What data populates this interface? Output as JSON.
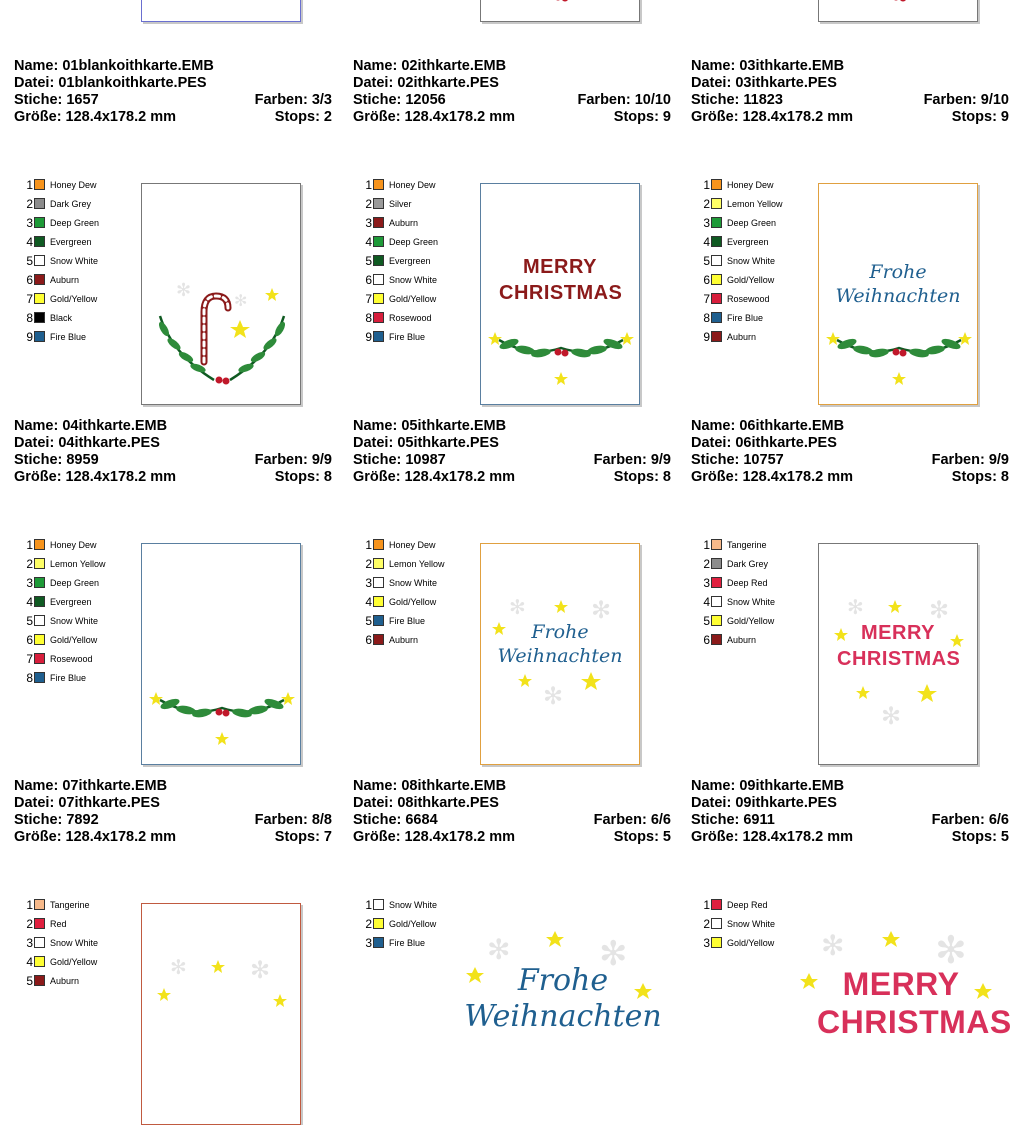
{
  "designs": [
    {
      "name": "Name: 01blankoithkarte.EMB",
      "file": "Datei: 01blankoithkarte.PES",
      "stitches": "Stiche: 1657",
      "colors": "Farben: 3/3",
      "size": "Größe: 128.4x178.2 mm",
      "stops": "Stops: 2",
      "palette": []
    },
    {
      "name": "Name: 02ithkarte.EMB",
      "file": "Datei: 02ithkarte.PES",
      "stitches": "Stiche: 12056",
      "colors": "Farben: 10/10",
      "size": "Größe: 128.4x178.2 mm",
      "stops": "Stops: 9",
      "palette": []
    },
    {
      "name": "Name: 03ithkarte.EMB",
      "file": "Datei: 03ithkarte.PES",
      "stitches": "Stiche: 11823",
      "colors": "Farben: 9/10",
      "size": "Größe: 128.4x178.2 mm",
      "stops": "Stops: 9",
      "palette": []
    },
    {
      "name": "Name: 04ithkarte.EMB",
      "file": "Datei: 04ithkarte.PES",
      "stitches": "Stiche: 8959",
      "colors": "Farben: 9/9",
      "size": "Größe: 128.4x178.2 mm",
      "stops": "Stops: 8",
      "palette": [
        {
          "num": "1",
          "name": "Honey Dew",
          "color": "#f7941d"
        },
        {
          "num": "2",
          "name": "Dark Grey",
          "color": "#8c8c8c"
        },
        {
          "num": "3",
          "name": "Deep Green",
          "color": "#1e9a38"
        },
        {
          "num": "4",
          "name": "Evergreen",
          "color": "#0f5a22"
        },
        {
          "num": "5",
          "name": "Snow White",
          "color": "#ffffff"
        },
        {
          "num": "6",
          "name": "Auburn",
          "color": "#8b1a1a"
        },
        {
          "num": "7",
          "name": "Gold/Yellow",
          "color": "#ffff33"
        },
        {
          "num": "8",
          "name": "Black",
          "color": "#000000"
        },
        {
          "num": "9",
          "name": "Fire Blue",
          "color": "#1f5f8f"
        }
      ]
    },
    {
      "name": "Name: 05ithkarte.EMB",
      "file": "Datei: 05ithkarte.PES",
      "stitches": "Stiche: 10987",
      "colors": "Farben: 9/9",
      "size": "Größe: 128.4x178.2 mm",
      "stops": "Stops: 8",
      "palette": [
        {
          "num": "1",
          "name": "Honey Dew",
          "color": "#f7941d"
        },
        {
          "num": "2",
          "name": "Silver",
          "color": "#9a9a9a"
        },
        {
          "num": "3",
          "name": "Auburn",
          "color": "#8b1a1a"
        },
        {
          "num": "4",
          "name": "Deep Green",
          "color": "#1e9a38"
        },
        {
          "num": "5",
          "name": "Evergreen",
          "color": "#0f5a22"
        },
        {
          "num": "6",
          "name": "Snow White",
          "color": "#ffffff"
        },
        {
          "num": "7",
          "name": "Gold/Yellow",
          "color": "#ffff33"
        },
        {
          "num": "8",
          "name": "Rosewood",
          "color": "#d81e3c"
        },
        {
          "num": "9",
          "name": "Fire Blue",
          "color": "#1f5f8f"
        }
      ],
      "headline": "MERRY CHRISTMAS"
    },
    {
      "name": "Name: 06ithkarte.EMB",
      "file": "Datei: 06ithkarte.PES",
      "stitches": "Stiche: 10757",
      "colors": "Farben: 9/9",
      "size": "Größe: 128.4x178.2 mm",
      "stops": "Stops: 8",
      "palette": [
        {
          "num": "1",
          "name": "Honey Dew",
          "color": "#f7941d"
        },
        {
          "num": "2",
          "name": "Lemon Yellow",
          "color": "#ffff66"
        },
        {
          "num": "3",
          "name": "Deep Green",
          "color": "#1e9a38"
        },
        {
          "num": "4",
          "name": "Evergreen",
          "color": "#0f5a22"
        },
        {
          "num": "5",
          "name": "Snow White",
          "color": "#ffffff"
        },
        {
          "num": "6",
          "name": "Gold/Yellow",
          "color": "#ffff33"
        },
        {
          "num": "7",
          "name": "Rosewood",
          "color": "#d81e3c"
        },
        {
          "num": "8",
          "name": "Fire Blue",
          "color": "#1f5f8f"
        },
        {
          "num": "9",
          "name": "Auburn",
          "color": "#8b1a1a"
        }
      ],
      "headline": "Frohe Weihnachten"
    },
    {
      "name": "Name: 07ithkarte.EMB",
      "file": "Datei: 07ithkarte.PES",
      "stitches": "Stiche: 7892",
      "colors": "Farben: 8/8",
      "size": "Größe: 128.4x178.2 mm",
      "stops": "Stops: 7",
      "palette": [
        {
          "num": "1",
          "name": "Honey Dew",
          "color": "#f7941d"
        },
        {
          "num": "2",
          "name": "Lemon Yellow",
          "color": "#ffff66"
        },
        {
          "num": "3",
          "name": "Deep Green",
          "color": "#1e9a38"
        },
        {
          "num": "4",
          "name": "Evergreen",
          "color": "#0f5a22"
        },
        {
          "num": "5",
          "name": "Snow White",
          "color": "#ffffff"
        },
        {
          "num": "6",
          "name": "Gold/Yellow",
          "color": "#ffff33"
        },
        {
          "num": "7",
          "name": "Rosewood",
          "color": "#d81e3c"
        },
        {
          "num": "8",
          "name": "Fire Blue",
          "color": "#1f5f8f"
        }
      ]
    },
    {
      "name": "Name: 08ithkarte.EMB",
      "file": "Datei: 08ithkarte.PES",
      "stitches": "Stiche: 6684",
      "colors": "Farben: 6/6",
      "size": "Größe: 128.4x178.2 mm",
      "stops": "Stops: 5",
      "palette": [
        {
          "num": "1",
          "name": "Honey Dew",
          "color": "#f7941d"
        },
        {
          "num": "2",
          "name": "Lemon Yellow",
          "color": "#ffff66"
        },
        {
          "num": "3",
          "name": "Snow White",
          "color": "#ffffff"
        },
        {
          "num": "4",
          "name": "Gold/Yellow",
          "color": "#ffff33"
        },
        {
          "num": "5",
          "name": "Fire Blue",
          "color": "#1f5f8f"
        },
        {
          "num": "6",
          "name": "Auburn",
          "color": "#8b1a1a"
        }
      ],
      "headline": "Frohe Weihnachten"
    },
    {
      "name": "Name: 09ithkarte.EMB",
      "file": "Datei: 09ithkarte.PES",
      "stitches": "Stiche: 6911",
      "colors": "Farben: 6/6",
      "size": "Größe: 128.4x178.2 mm",
      "stops": "Stops: 5",
      "palette": [
        {
          "num": "1",
          "name": "Tangerine",
          "color": "#f7b98a"
        },
        {
          "num": "2",
          "name": "Dark Grey",
          "color": "#8c8c8c"
        },
        {
          "num": "3",
          "name": "Deep Red",
          "color": "#e0203f"
        },
        {
          "num": "4",
          "name": "Snow White",
          "color": "#ffffff"
        },
        {
          "num": "5",
          "name": "Gold/Yellow",
          "color": "#ffff33"
        },
        {
          "num": "6",
          "name": "Auburn",
          "color": "#8b1a1a"
        }
      ],
      "headline": "MERRY CHRISTMAS"
    },
    {
      "palette": [
        {
          "num": "1",
          "name": "Tangerine",
          "color": "#f7b98a"
        },
        {
          "num": "2",
          "name": "Red",
          "color": "#e0203f"
        },
        {
          "num": "3",
          "name": "Snow White",
          "color": "#ffffff"
        },
        {
          "num": "4",
          "name": "Gold/Yellow",
          "color": "#ffff33"
        },
        {
          "num": "5",
          "name": "Auburn",
          "color": "#8b1a1a"
        }
      ]
    },
    {
      "palette": [
        {
          "num": "1",
          "name": "Snow White",
          "color": "#ffffff"
        },
        {
          "num": "2",
          "name": "Gold/Yellow",
          "color": "#ffff33"
        },
        {
          "num": "3",
          "name": "Fire Blue",
          "color": "#1f5f8f"
        }
      ],
      "headline": "Frohe Weihnachten"
    },
    {
      "palette": [
        {
          "num": "1",
          "name": "Deep Red",
          "color": "#e0203f"
        },
        {
          "num": "2",
          "name": "Snow White",
          "color": "#ffffff"
        },
        {
          "num": "3",
          "name": "Gold/Yellow",
          "color": "#ffff33"
        }
      ],
      "headline": "MERRY CHRISTMAS"
    }
  ],
  "colors": {
    "leaf": "#2e8b3a",
    "leaf_dark": "#0f5a22",
    "berry": "#c0182a",
    "star": "#f2e21a",
    "snow": "#e4e4e4",
    "merry": "#8b1a1a",
    "merry_red": "#d8305a",
    "frohe": "#1f5f8f"
  }
}
